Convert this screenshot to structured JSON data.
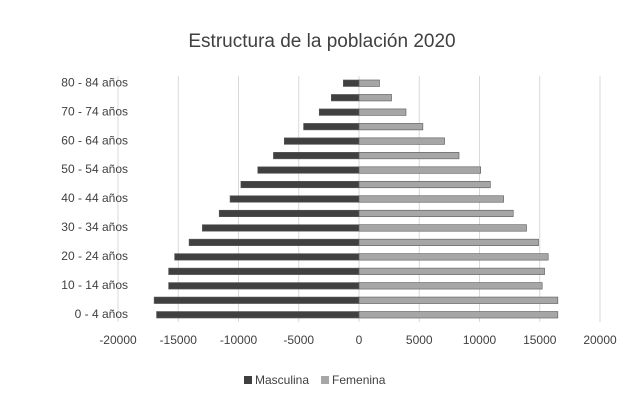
{
  "chart_data": {
    "type": "bar",
    "orientation": "horizontal",
    "title": "Estructura de la población 2020",
    "categories": [
      "0 - 4 años",
      null,
      "10 - 14 años",
      null,
      "20 - 24 años",
      null,
      "30 - 34 años",
      null,
      "40 - 44 años",
      null,
      "50 - 54 años",
      null,
      "60 - 64 años",
      null,
      "70 - 74 años",
      null,
      "80 - 84 años"
    ],
    "series": [
      {
        "name": "Masculina",
        "color": "#404040",
        "values": [
          -16800,
          -17000,
          -15800,
          -15800,
          -15300,
          -14100,
          -13000,
          -11600,
          -10700,
          -9800,
          -8400,
          -7100,
          -6200,
          -4600,
          -3300,
          -2300,
          -1300
        ]
      },
      {
        "name": "Femenina",
        "color": "#a6a6a6",
        "values": [
          16500,
          16500,
          15200,
          15400,
          15700,
          14900,
          13900,
          12800,
          12000,
          10900,
          10100,
          8300,
          7100,
          5300,
          3900,
          2700,
          1700
        ]
      }
    ],
    "xlim": [
      -20000,
      20000
    ],
    "xticks": [
      -20000,
      -15000,
      -10000,
      -5000,
      0,
      5000,
      10000,
      15000,
      20000
    ],
    "grid": true,
    "legend": "bottom"
  }
}
